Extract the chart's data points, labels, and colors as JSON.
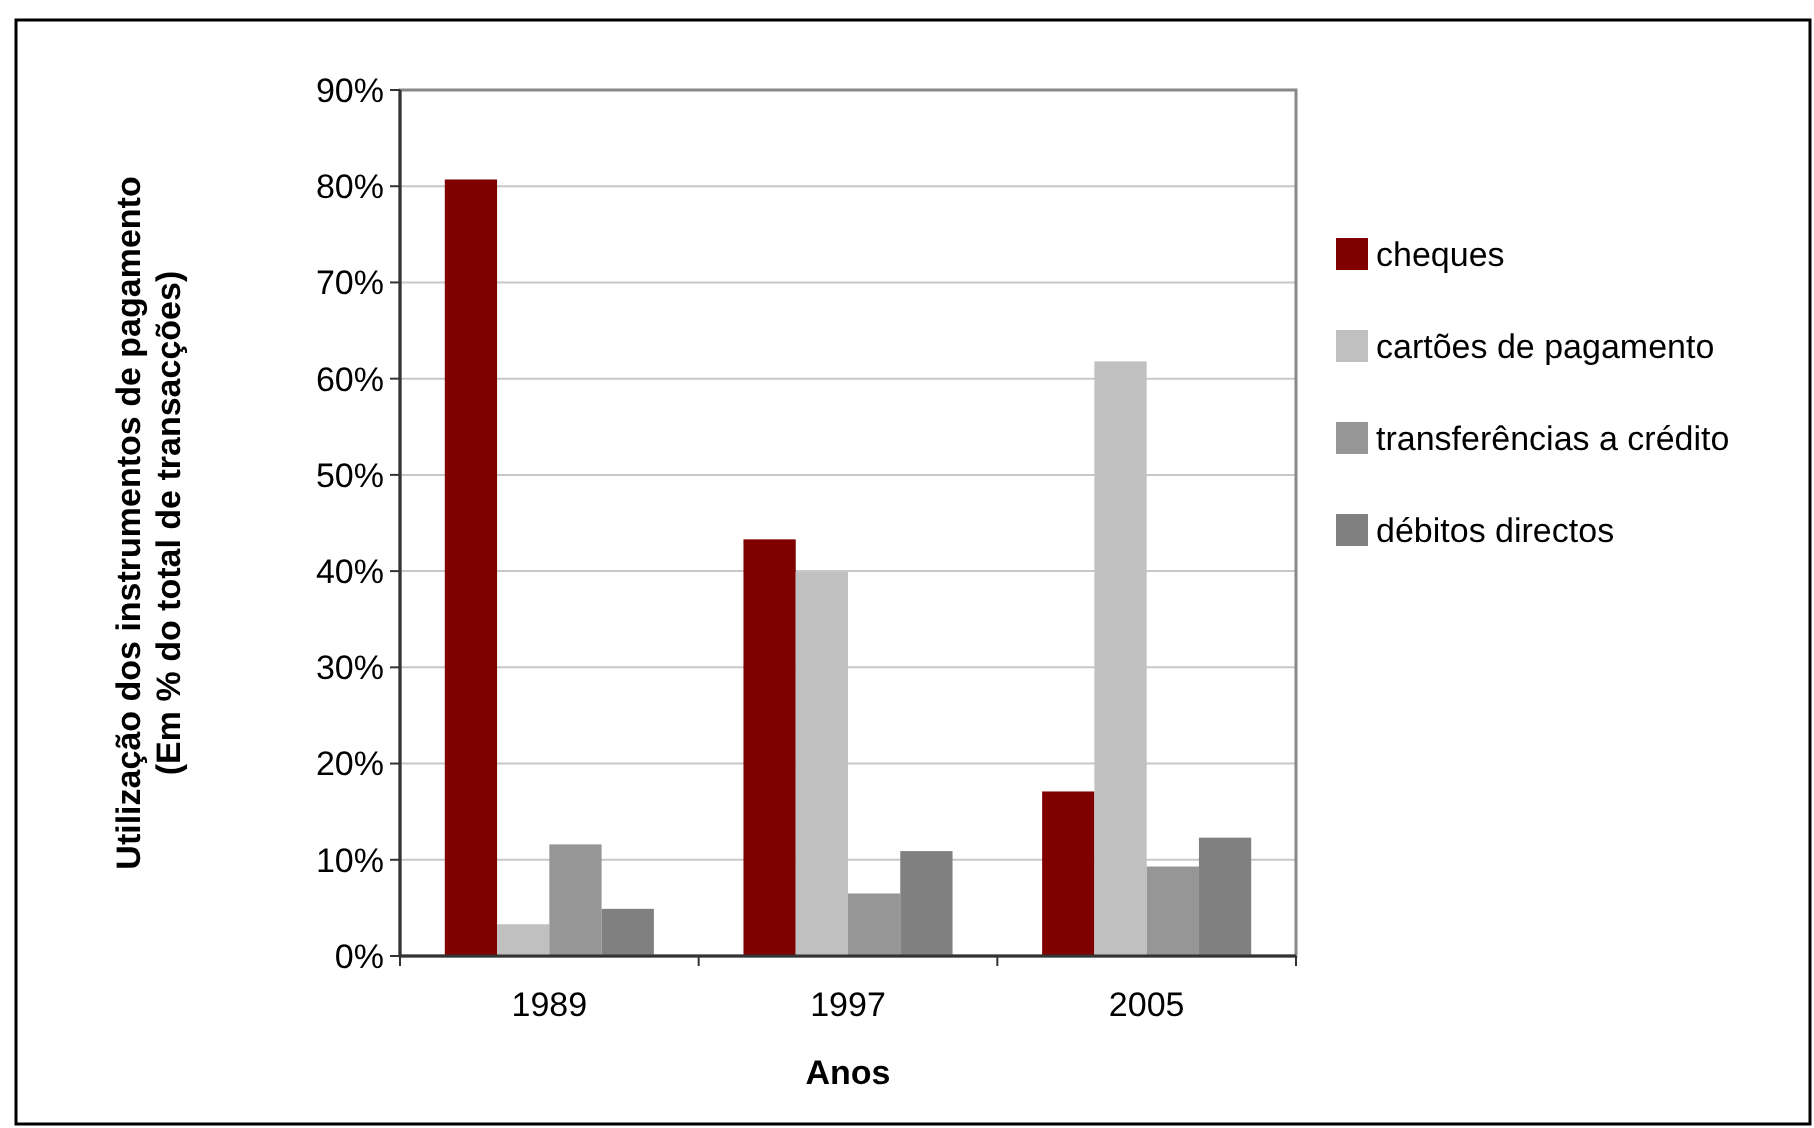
{
  "chart_data": {
    "type": "bar",
    "xlabel": "Anos",
    "ylabel": "Utilização dos instrumentos de pagamento\n(Em % do total de transacções)",
    "categories": [
      "1989",
      "1997",
      "2005"
    ],
    "series": [
      {
        "name": "cheques",
        "color": "#800000",
        "values": [
          80.7,
          43.3,
          17.1
        ]
      },
      {
        "name": "cartões de pagamento",
        "color": "#c0c0c0",
        "values": [
          3.3,
          39.9,
          61.8
        ]
      },
      {
        "name": "transferências a crédito",
        "color": "#969696",
        "values": [
          11.6,
          6.5,
          9.3
        ]
      },
      {
        "name": "débitos directos",
        "color": "#808080",
        "values": [
          4.9,
          10.9,
          12.3
        ]
      }
    ],
    "ylim": [
      0,
      90
    ],
    "yticks": [
      {
        "value": 0,
        "label": "0%"
      },
      {
        "value": 10,
        "label": "10%"
      },
      {
        "value": 20,
        "label": "20%"
      },
      {
        "value": 30,
        "label": "30%"
      },
      {
        "value": 40,
        "label": "40%"
      },
      {
        "value": 50,
        "label": "50%"
      },
      {
        "value": 60,
        "label": "60%"
      },
      {
        "value": 70,
        "label": "70%"
      },
      {
        "value": 80,
        "label": "80%"
      },
      {
        "value": 90,
        "label": "90%"
      }
    ],
    "grid": "y",
    "legend": "right"
  }
}
